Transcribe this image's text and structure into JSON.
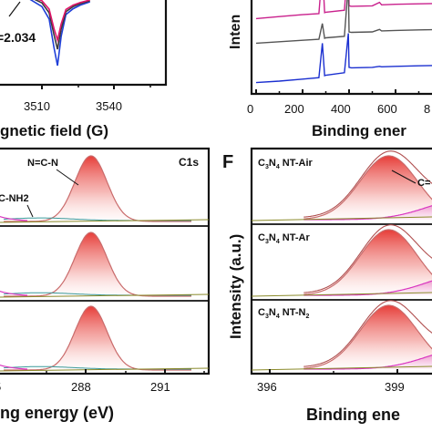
{
  "chart_data": [
    {
      "panel": "epr-partial",
      "type": "line",
      "xlabel": "gnetic field (G)",
      "xticks": [
        "3510",
        "3540"
      ],
      "annotation": "=2.034",
      "series": [
        {
          "color": "#1f3fd8",
          "x": [
            3500,
            3505,
            3510,
            3513,
            3515,
            3516.5,
            3518,
            3520,
            3523,
            3526,
            3530
          ],
          "y": [
            12,
            18,
            38,
            72,
            150,
            200,
            120,
            60,
            44,
            34,
            25
          ]
        },
        {
          "color": "#3a3a3a",
          "x": [
            3500,
            3505,
            3510,
            3513,
            3515,
            3516.5,
            3518,
            3520,
            3523,
            3526,
            3530
          ],
          "y": [
            8,
            12,
            28,
            55,
            115,
            155,
            100,
            52,
            38,
            30,
            22
          ]
        },
        {
          "color": "#e0156a",
          "x": [
            3500,
            3505,
            3510,
            3513,
            3515,
            3516.5,
            3518,
            3520,
            3523,
            3526,
            3530
          ],
          "y": [
            6,
            10,
            22,
            45,
            98,
            130,
            86,
            46,
            34,
            27,
            20
          ]
        }
      ]
    },
    {
      "panel": "survey-partial",
      "type": "line",
      "ylabel": "Inten",
      "xlabel": "Binding ener",
      "xticks": [
        "0",
        "200",
        "400",
        "600",
        "8"
      ],
      "series": [
        {
          "color": "#c9208c",
          "x": [
            0,
            100,
            200,
            270,
            285,
            295,
            300,
            380,
            397,
            400,
            410,
            500,
            531,
            540,
            600,
            700,
            800
          ],
          "y": [
            14,
            14.4,
            14.8,
            15,
            24,
            15.2,
            15.3,
            15.7,
            26,
            16.6,
            16.5,
            16.6,
            17.3,
            16.8,
            16.9,
            17,
            17.1
          ]
        },
        {
          "color": "#555555",
          "x": [
            0,
            100,
            200,
            270,
            285,
            295,
            300,
            380,
            397,
            400,
            410,
            500,
            531,
            540,
            600,
            700,
            800
          ],
          "y": [
            9,
            9.3,
            9.6,
            9.8,
            13,
            10,
            10.1,
            10.4,
            21,
            11.3,
            11.2,
            11.3,
            11.8,
            11.5,
            11.6,
            11.7,
            11.8
          ]
        },
        {
          "color": "#1a2fd0",
          "x": [
            0,
            100,
            200,
            270,
            285,
            295,
            300,
            380,
            397,
            400,
            410,
            500,
            531,
            540,
            600,
            700,
            800
          ],
          "y": [
            1,
            1.3,
            1.7,
            2,
            9,
            2.4,
            2.5,
            3,
            11,
            4.1,
            4,
            4.1,
            4.3,
            4.2,
            4.3,
            4.4,
            4.5
          ]
        }
      ]
    },
    {
      "panel": "C1s",
      "type": "area",
      "title": "C1s",
      "xlabel": "ng energy (eV)",
      "xticks": [
        "288",
        "291"
      ],
      "annotations": [
        "N=C-N",
        "C-NH2"
      ],
      "peaks": [
        {
          "label": "N=C-N",
          "center": 288.2,
          "height": 1.0,
          "width": 0.9
        },
        {
          "label": "C-NH2",
          "center": 286.3,
          "height": 0.04,
          "width": 1.2
        }
      ],
      "subpanels": [
        "top",
        "middle",
        "bottom"
      ]
    },
    {
      "panel": "N1s",
      "type": "area",
      "label": "F",
      "ylabel": "Intensity (a.u.)",
      "xlabel": "Binding ene",
      "xticks": [
        "396",
        "399"
      ],
      "annotations": [
        "C="
      ],
      "samples": [
        {
          "label_base": "C",
          "sub1": "3",
          "mid": "N",
          "sub2": "4",
          "tail": " NT-Air"
        },
        {
          "label_base": "C",
          "sub1": "3",
          "mid": "N",
          "sub2": "4",
          "tail": " NT-Ar"
        },
        {
          "label_base": "C",
          "sub1": "3",
          "mid": "N",
          "sub2": "4",
          "tail": " NT-N",
          "sub3": "2"
        }
      ],
      "peaks": [
        {
          "center": 398.8,
          "height": 1.0,
          "width": 0.85,
          "color": "#e24a4a"
        },
        {
          "center": 400.6,
          "height": 0.32,
          "width": 0.9,
          "color": "#d946c8"
        }
      ]
    }
  ],
  "colors": {
    "frame": "#111111",
    "peak_fill": "#e5322d",
    "peak_line": "#c96b6b",
    "magenta": "#d936c0",
    "blue": "#2233cc"
  }
}
